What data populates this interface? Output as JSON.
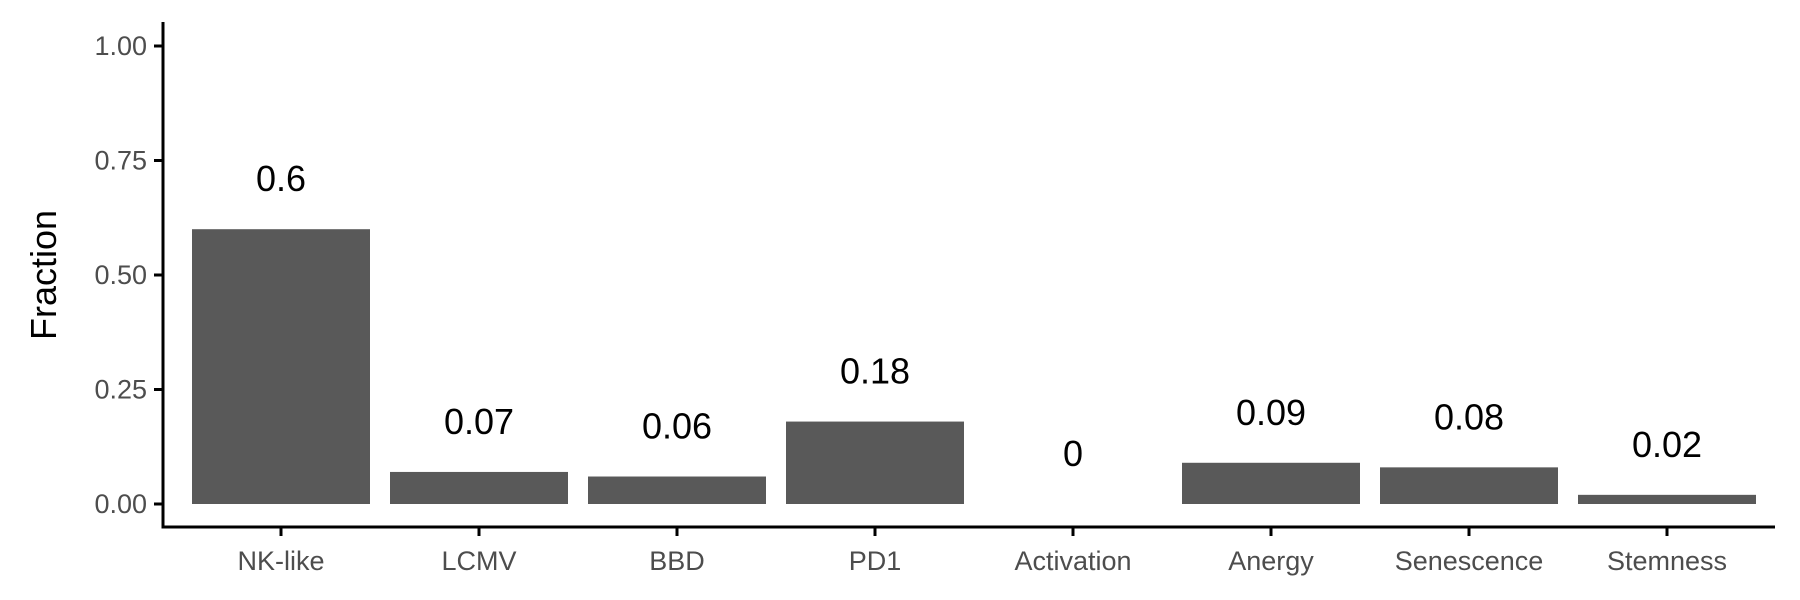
{
  "chart_data": {
    "type": "bar",
    "categories": [
      "NK-like",
      "LCMV",
      "BBD",
      "PD1",
      "Activation",
      "Anergy",
      "Senescence",
      "Stemness"
    ],
    "values": [
      0.6,
      0.07,
      0.06,
      0.18,
      0.0,
      0.09,
      0.08,
      0.02
    ],
    "data_labels": [
      "0.6",
      "0.07",
      "0.06",
      "0.18",
      "0",
      "0.09",
      "0.08",
      "0.02"
    ],
    "ylabel": "Fraction",
    "xlabel": "",
    "ylim": [
      0,
      1
    ],
    "yticks": [
      0,
      0.25,
      0.5,
      0.75,
      1.0
    ],
    "ytick_labels": [
      "0.00",
      "0.25",
      "0.50",
      "0.75",
      "1.00"
    ],
    "grid": false,
    "colors": {
      "bar": "#595959",
      "axis": "#000000",
      "tick_text": "#4d4d4d",
      "label_text": "#000000"
    }
  }
}
